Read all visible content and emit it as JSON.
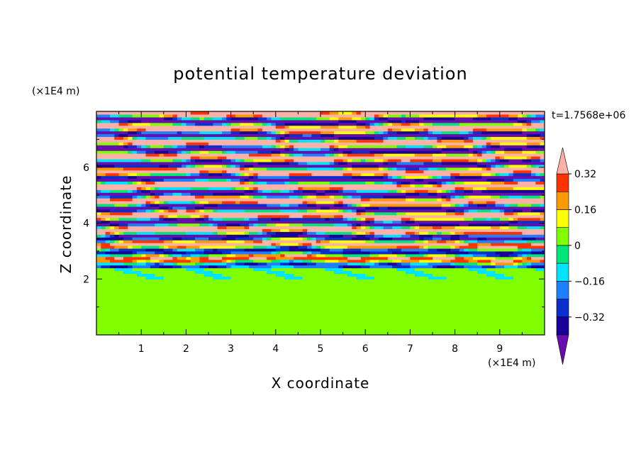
{
  "chart_data": {
    "type": "heatmap",
    "title": "potential temperature deviation",
    "xlabel": "X coordinate",
    "ylabel": "Z coordinate",
    "x_unit_label": "(×1E4 m)",
    "y_unit_label": "(×1E4 m)",
    "time_label": "t=1.7568e+06",
    "xlim": [
      0,
      10
    ],
    "ylim": [
      0,
      8
    ],
    "x_ticks": [
      "1",
      "2",
      "3",
      "4",
      "5",
      "6",
      "7",
      "8",
      "9"
    ],
    "y_ticks": [
      "2",
      "4",
      "6"
    ],
    "x_tick_values": [
      1,
      2,
      3,
      4,
      5,
      6,
      7,
      8,
      9
    ],
    "y_tick_values": [
      2,
      4,
      6
    ],
    "colorbar": {
      "levels": [
        -0.4,
        -0.32,
        -0.24,
        -0.16,
        -0.08,
        0,
        0.08,
        0.16,
        0.24,
        0.32,
        0.4
      ],
      "colors": [
        "#6a0dad",
        "#1a0099",
        "#0a2fcc",
        "#1e7fff",
        "#00e5ff",
        "#00e57a",
        "#80ff00",
        "#ffff00",
        "#ff9900",
        "#ff3300",
        "#ffb0a8"
      ],
      "labeled_values": [
        0.32,
        0.16,
        0,
        -0.16,
        -0.32
      ],
      "labels": [
        "0.32",
        "0.16",
        "0",
        "−0.16",
        "−0.32"
      ],
      "extend": "both"
    },
    "legend": "right",
    "grid": false
  }
}
